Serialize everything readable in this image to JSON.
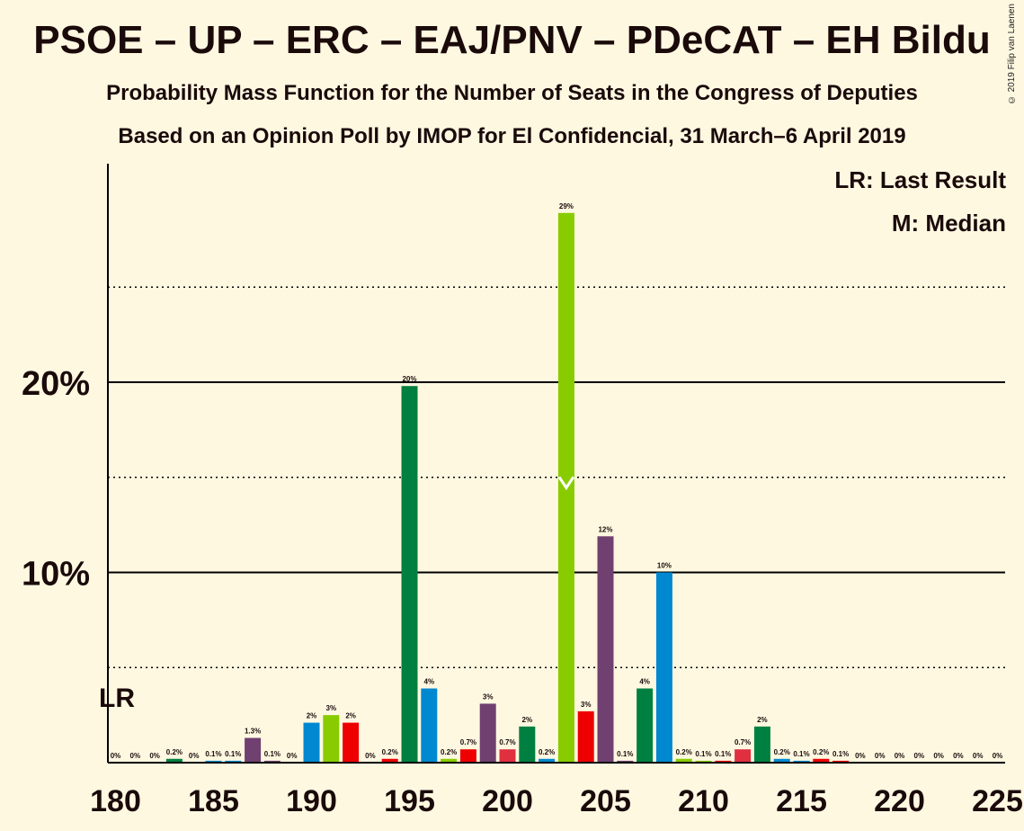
{
  "title": "PSOE – UP – ERC – EAJ/PNV – PDeCAT – EH Bildu",
  "subtitle_1": "Probability Mass Function for the Number of Seats in the Congress of Deputies",
  "subtitle_2": "Based on an Opinion Poll by IMOP for El Confidencial, 31 March–6 April 2019",
  "copyright": "© 2019 Filip van Laenen",
  "legend": {
    "last_result": "LR: Last Result",
    "median": "M: Median"
  },
  "markers": {
    "last_result_label": "LR",
    "last_result_seat": 180,
    "median_seat": 203
  },
  "chart_data": {
    "type": "bar",
    "x": [
      180,
      181,
      182,
      183,
      184,
      185,
      186,
      187,
      188,
      189,
      190,
      191,
      192,
      193,
      194,
      195,
      196,
      197,
      198,
      199,
      200,
      201,
      202,
      203,
      204,
      205,
      206,
      207,
      208,
      209,
      210,
      211,
      212,
      213,
      214,
      215,
      216,
      217,
      218,
      219,
      220,
      221,
      222,
      223,
      224,
      225
    ],
    "values": [
      0,
      0,
      0,
      0.2,
      0,
      0.1,
      0.1,
      1.3,
      0.1,
      0,
      2.1,
      2.5,
      2.1,
      0,
      0.2,
      19.8,
      3.9,
      0.2,
      0.7,
      3.1,
      0.7,
      1.9,
      0.2,
      28.9,
      2.7,
      11.9,
      0.1,
      3.9,
      10.0,
      0.2,
      0.1,
      0.1,
      0.7,
      1.9,
      0.2,
      0.1,
      0.2,
      0.1,
      0,
      0,
      0,
      0,
      0,
      0,
      0,
      0
    ],
    "value_labels": [
      "0%",
      "0%",
      "0%",
      "0.2%",
      "0%",
      "0.1%",
      "0.1%",
      "1.3%",
      "0.1%",
      "0%",
      "2%",
      "3%",
      "2%",
      "0%",
      "0.2%",
      "20%",
      "4%",
      "0.2%",
      "0.7%",
      "3%",
      "0.7%",
      "2%",
      "0.2%",
      "29%",
      "3%",
      "12%",
      "0.1%",
      "4%",
      "10%",
      "0.2%",
      "0.1%",
      "0.1%",
      "0.7%",
      "2%",
      "0.2%",
      "0.1%",
      "0.2%",
      "0.1%",
      "0%",
      "0%",
      "0%",
      "0%",
      "0%",
      "0%",
      "0%",
      "0%"
    ],
    "colors": [
      "#008040",
      "#008040",
      "#008040",
      "#008040",
      "#008040",
      "#0088D0",
      "#0088D0",
      "#704070",
      "#704070",
      "#704070",
      "#0088D0",
      "#88CC00",
      "#EE0000",
      "#EE0000",
      "#EE0000",
      "#008040",
      "#0088D0",
      "#88CC00",
      "#EE0000",
      "#704070",
      "#E03040",
      "#008040",
      "#0088D0",
      "#88CC00",
      "#EE0000",
      "#704070",
      "#704070",
      "#008040",
      "#0088D0",
      "#88CC00",
      "#88CC00",
      "#EE0000",
      "#E03040",
      "#008040",
      "#0088D0",
      "#0088D0",
      "#EE0000",
      "#EE0000",
      "#EE0000",
      "#EE0000",
      "#EE0000",
      "#EE0000",
      "#EE0000",
      "#EE0000",
      "#EE0000",
      "#EE0000"
    ],
    "xlim": [
      180,
      225
    ],
    "ylim": [
      0,
      31
    ],
    "xticks": [
      180,
      185,
      190,
      195,
      200,
      205,
      210,
      215,
      220,
      225
    ],
    "yticks_labeled": [
      10,
      20
    ],
    "yticks_dotted": [
      5,
      15,
      25
    ],
    "ytick_labels": [
      "10%",
      "20%"
    ],
    "grid": true
  }
}
